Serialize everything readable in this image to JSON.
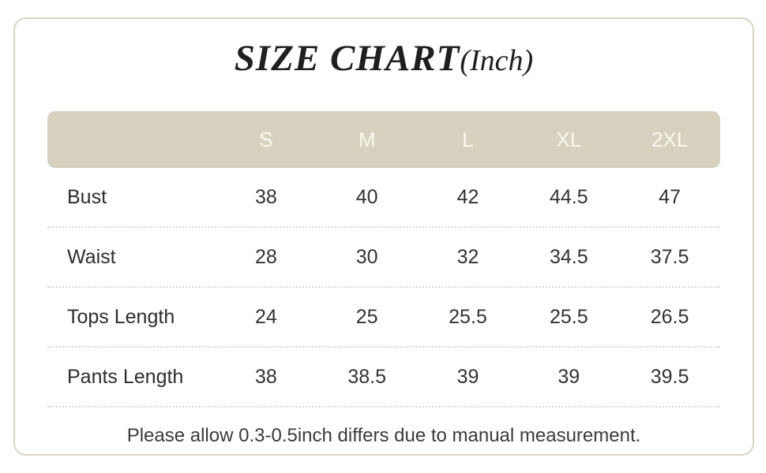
{
  "title": {
    "main": "SIZE CHART",
    "suffix": "(Inch)"
  },
  "chart_data": {
    "type": "table",
    "title": "SIZE CHART(Inch)",
    "unit": "inch",
    "columns": [
      "S",
      "M",
      "L",
      "XL",
      "2XL"
    ],
    "rows": [
      {
        "label": "Bust",
        "values": [
          "38",
          "40",
          "42",
          "44.5",
          "47"
        ]
      },
      {
        "label": "Waist",
        "values": [
          "28",
          "30",
          "32",
          "34.5",
          "37.5"
        ]
      },
      {
        "label": "Tops Length",
        "values": [
          "24",
          "25",
          "25.5",
          "25.5",
          "26.5"
        ]
      },
      {
        "label": "Pants Length",
        "values": [
          "38",
          "38.5",
          "39",
          "39",
          "39.5"
        ]
      }
    ]
  },
  "note": "Please allow 0.3-0.5inch differs due to manual measurement.",
  "colors": {
    "header_bg": "#d7d1c0",
    "header_text": "#faf8ee",
    "frame_border": "#dad4c3",
    "body_text": "#333333",
    "dotted_line": "#d9d9d9"
  }
}
